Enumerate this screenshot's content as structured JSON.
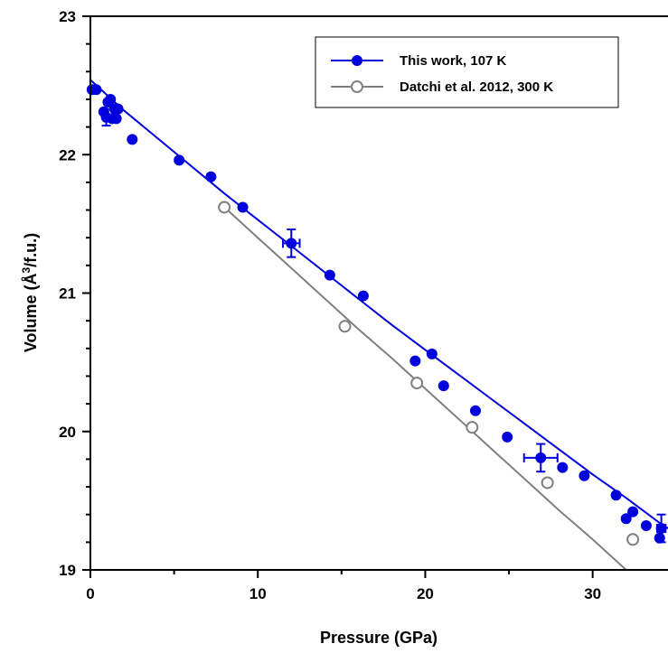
{
  "chart_data": {
    "type": "scatter",
    "xlabel": "Pressure (GPa)",
    "ylabel_prefix": "Volume (",
    "ylabel_unit": "Å",
    "ylabel_sup": "3",
    "ylabel_suffix": "/f.u.)",
    "xlim": [
      0,
      34.5
    ],
    "ylim": [
      19,
      23
    ],
    "x_major_ticks": [
      0,
      10,
      20,
      30
    ],
    "x_minor_ticks": [
      5,
      15,
      25
    ],
    "y_major_ticks": [
      19,
      20,
      21,
      22,
      23
    ],
    "y_minor_ticks": [
      19.2,
      19.4,
      19.6,
      19.8,
      20.2,
      20.4,
      20.6,
      20.8,
      21.2,
      21.4,
      21.6,
      21.8,
      22.2,
      22.4,
      22.6,
      22.8
    ],
    "legend_position": "top-right",
    "series": [
      {
        "name": "This work, 107 K",
        "color": "#0000dd",
        "marker": "filled-circle",
        "points": [
          {
            "x": 0.1,
            "y": 22.47
          },
          {
            "x": 0.35,
            "y": 22.47
          },
          {
            "x": 0.8,
            "y": 22.31
          },
          {
            "x": 0.95,
            "y": 22.27,
            "yerr": 0.06
          },
          {
            "x": 1.05,
            "y": 22.38
          },
          {
            "x": 1.2,
            "y": 22.4
          },
          {
            "x": 1.3,
            "y": 22.26
          },
          {
            "x": 1.45,
            "y": 22.33
          },
          {
            "x": 1.55,
            "y": 22.26
          },
          {
            "x": 1.65,
            "y": 22.33
          },
          {
            "x": 2.5,
            "y": 22.11
          },
          {
            "x": 5.3,
            "y": 21.96
          },
          {
            "x": 7.2,
            "y": 21.84
          },
          {
            "x": 9.1,
            "y": 21.62
          },
          {
            "x": 12.0,
            "y": 21.36,
            "xerr": 0.5,
            "yerr": 0.1
          },
          {
            "x": 14.3,
            "y": 21.13
          },
          {
            "x": 16.3,
            "y": 20.98
          },
          {
            "x": 19.4,
            "y": 20.51
          },
          {
            "x": 20.4,
            "y": 20.56
          },
          {
            "x": 21.1,
            "y": 20.33
          },
          {
            "x": 23.0,
            "y": 20.15
          },
          {
            "x": 24.9,
            "y": 19.96
          },
          {
            "x": 26.9,
            "y": 19.81,
            "xerr": 1.0,
            "yerr": 0.1
          },
          {
            "x": 28.2,
            "y": 19.74
          },
          {
            "x": 29.5,
            "y": 19.68
          },
          {
            "x": 31.4,
            "y": 19.54
          },
          {
            "x": 32.0,
            "y": 19.37
          },
          {
            "x": 32.4,
            "y": 19.42
          },
          {
            "x": 33.2,
            "y": 19.32
          },
          {
            "x": 34.0,
            "y": 19.23
          },
          {
            "x": 34.1,
            "y": 19.3,
            "xerr": 0.25,
            "yerr": 0.1
          }
        ],
        "fit": {
          "x": [
            0,
            2,
            4,
            6,
            8,
            10,
            12,
            14,
            16,
            18,
            20,
            22,
            24,
            26,
            28,
            30,
            32,
            34,
            34.5
          ],
          "y": [
            22.54,
            22.32,
            22.12,
            21.92,
            21.72,
            21.53,
            21.34,
            21.15,
            20.96,
            20.77,
            20.59,
            20.41,
            20.23,
            20.05,
            19.87,
            19.69,
            19.52,
            19.34,
            19.3
          ]
        }
      },
      {
        "name": "Datchi et al. 2012, 300 K",
        "color": "#808080",
        "marker": "open-circle",
        "points": [
          {
            "x": 8.0,
            "y": 21.62
          },
          {
            "x": 15.2,
            "y": 20.76
          },
          {
            "x": 19.5,
            "y": 20.35
          },
          {
            "x": 22.8,
            "y": 20.03
          },
          {
            "x": 27.3,
            "y": 19.63
          },
          {
            "x": 32.4,
            "y": 19.22
          }
        ],
        "fit": {
          "x": [
            8.0,
            10,
            12,
            14,
            16,
            18,
            20,
            22,
            24,
            26,
            28,
            30,
            32,
            34,
            34.5
          ],
          "y": [
            21.62,
            21.4,
            21.18,
            20.96,
            20.74,
            20.53,
            20.31,
            20.09,
            19.87,
            19.65,
            19.43,
            19.22,
            19.0,
            18.78,
            18.73
          ]
        }
      }
    ]
  }
}
